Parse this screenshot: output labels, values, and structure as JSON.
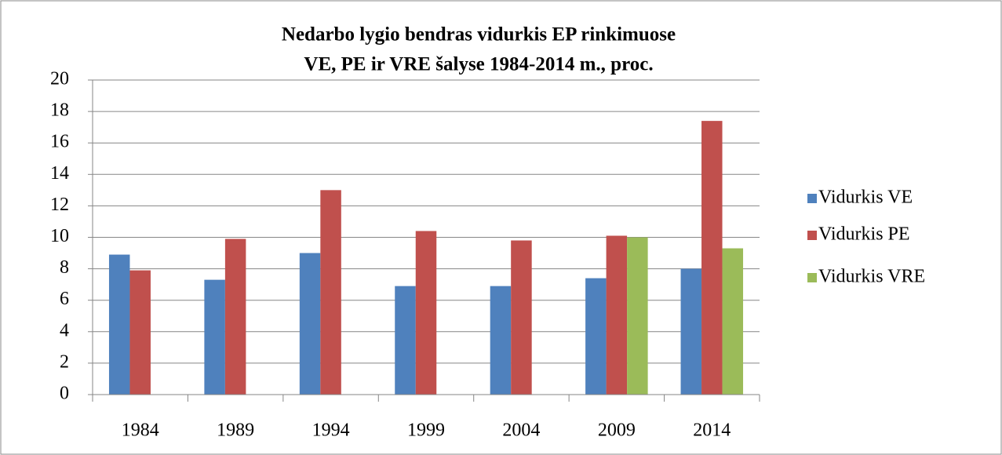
{
  "chart_data": {
    "type": "bar",
    "title": [
      "Nedarbo lygio bendras vidurkis EP rinkimuose",
      "VE, PE ir VRE šalyse 1984-2014 m., proc."
    ],
    "categories": [
      "1984",
      "1989",
      "1994",
      "1999",
      "2004",
      "2009",
      "2014"
    ],
    "series": [
      {
        "name": "Vidurkis VE",
        "color": "#4f81bd",
        "values": [
          8.9,
          7.3,
          9.0,
          6.9,
          6.9,
          7.4,
          8.0
        ]
      },
      {
        "name": "Vidurkis PE",
        "color": "#c0504d",
        "values": [
          7.9,
          9.9,
          13.0,
          10.4,
          9.8,
          10.1,
          17.4
        ]
      },
      {
        "name": "Vidurkis VRE",
        "color": "#9bbb59",
        "values": [
          null,
          null,
          null,
          null,
          null,
          10.0,
          9.3
        ]
      }
    ],
    "ylim": [
      0,
      20
    ],
    "yticks": [
      0,
      2,
      4,
      6,
      8,
      10,
      12,
      14,
      16,
      18,
      20
    ],
    "grid": true,
    "legend": "right"
  }
}
